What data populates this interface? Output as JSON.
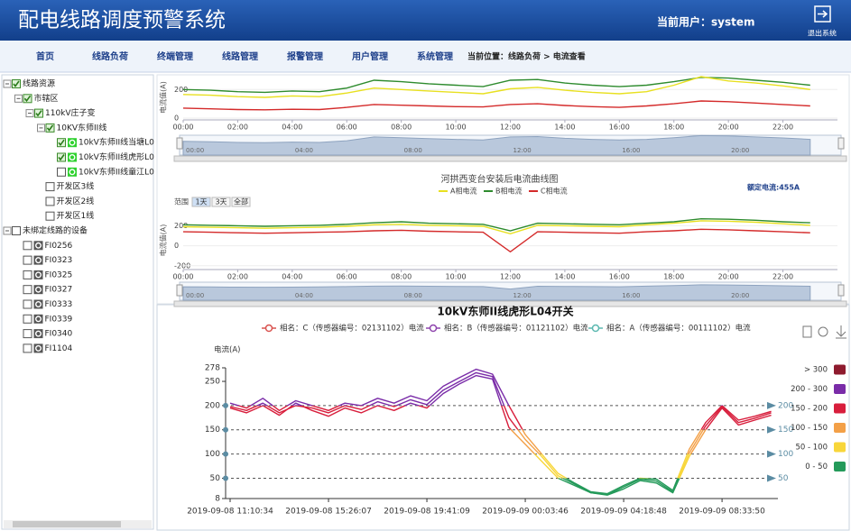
{
  "header": {
    "title": "配电线路调度预警系统",
    "user": "当前用户：system",
    "logout": "退出系统"
  },
  "nav": {
    "items": [
      "首页",
      "线路负荷",
      "终端管理",
      "线路管理",
      "报警管理",
      "用户管理",
      "系统管理"
    ],
    "location": "当前位置：线路负荷 > 电流查看"
  },
  "tree": [
    {
      "label": "线路资源",
      "level": 0,
      "checked": true
    },
    {
      "label": "市辖区",
      "level": 1,
      "checked": true
    },
    {
      "label": "110kV庄子变",
      "level": 2,
      "checked": true
    },
    {
      "label": "10KV东师II线",
      "level": 3,
      "checked": true
    },
    {
      "label": "10kV东师II线当塘L0",
      "level": 4,
      "checked": true,
      "icon": "switch"
    },
    {
      "label": "10kV东师II线虎形L0",
      "level": 4,
      "checked": true,
      "icon": "switch"
    },
    {
      "label": "10kV东师II线童江L0",
      "level": 4,
      "checked": false,
      "icon": "switch"
    },
    {
      "label": "开发区3线",
      "level": 3,
      "checked": false
    },
    {
      "label": "开发区2线",
      "level": 3,
      "checked": false
    },
    {
      "label": "开发区1线",
      "level": 3,
      "checked": false
    },
    {
      "label": "未绑定线路的设备",
      "level": 0,
      "checked": false
    },
    {
      "label": "FI0256",
      "level": 1,
      "checked": false,
      "icon": "sensor"
    },
    {
      "label": "FI0323",
      "level": 1,
      "checked": false,
      "icon": "sensor"
    },
    {
      "label": "FI0325",
      "level": 1,
      "checked": false,
      "icon": "sensor"
    },
    {
      "label": "FI0327",
      "level": 1,
      "checked": false,
      "icon": "sensor"
    },
    {
      "label": "FI0333",
      "level": 1,
      "checked": false,
      "icon": "sensor"
    },
    {
      "label": "FI0339",
      "level": 1,
      "checked": false,
      "icon": "sensor"
    },
    {
      "label": "FI0340",
      "level": 1,
      "checked": false,
      "icon": "sensor"
    },
    {
      "label": "FI1104",
      "level": 1,
      "checked": false,
      "icon": "sensor"
    }
  ],
  "chart_data": [
    {
      "type": "line",
      "y_label": "电流值(A)",
      "x": [
        0,
        1,
        2,
        3,
        4,
        5,
        6,
        7,
        8,
        9,
        10,
        11,
        12,
        13,
        14,
        15,
        16,
        17,
        18,
        19,
        20,
        21,
        22,
        23
      ],
      "xlim": [
        0,
        24
      ],
      "xticks": [
        {
          "value": 0,
          "label": "00:00"
        },
        {
          "value": 2,
          "label": "02:00"
        },
        {
          "value": 4,
          "label": "04:00"
        },
        {
          "value": 6,
          "label": "06:00"
        },
        {
          "value": 8,
          "label": "08:00"
        },
        {
          "value": 10,
          "label": "10:00"
        },
        {
          "value": 12,
          "label": "12:00"
        },
        {
          "value": 14,
          "label": "14:00"
        },
        {
          "value": 16,
          "label": "16:00"
        },
        {
          "value": 18,
          "label": "18:00"
        },
        {
          "value": 20,
          "label": "20:00"
        },
        {
          "value": 22,
          "label": "22:00"
        }
      ],
      "ylim": [
        0,
        290
      ],
      "yticks": [
        0,
        200
      ],
      "series": [
        {
          "color": "#2e8b2e",
          "values": [
            200,
            195,
            185,
            180,
            190,
            185,
            210,
            265,
            255,
            240,
            230,
            220,
            265,
            270,
            245,
            230,
            220,
            230,
            255,
            285,
            280,
            265,
            250,
            230
          ]
        },
        {
          "color": "#e8e020",
          "values": [
            165,
            160,
            150,
            145,
            155,
            150,
            175,
            210,
            200,
            190,
            180,
            170,
            205,
            215,
            195,
            180,
            170,
            185,
            230,
            290,
            260,
            245,
            225,
            200
          ]
        },
        {
          "color": "#d42a2a",
          "values": [
            70,
            65,
            60,
            58,
            62,
            60,
            75,
            95,
            90,
            85,
            80,
            78,
            95,
            100,
            88,
            80,
            75,
            85,
            100,
            120,
            115,
            105,
            95,
            85
          ]
        }
      ]
    },
    {
      "type": "line",
      "title": "河拱西变台安装后电流曲线图",
      "y_label": "电流值(A)",
      "rated_current": "额定电流:455A",
      "range_selector": {
        "label": "范围",
        "buttons": [
          "1天",
          "3天",
          "全部"
        ],
        "selected": 0
      },
      "x": [
        0,
        1,
        2,
        3,
        4,
        5,
        6,
        7,
        8,
        9,
        10,
        11,
        12,
        13,
        14,
        15,
        16,
        17,
        18,
        19,
        20,
        21,
        22,
        23
      ],
      "xlim": [
        0,
        24
      ],
      "xticks": [
        {
          "value": 0,
          "label": "00:00"
        },
        {
          "value": 2,
          "label": "02:00"
        },
        {
          "value": 4,
          "label": "04:00"
        },
        {
          "value": 6,
          "label": "06:00"
        },
        {
          "value": 8,
          "label": "08:00"
        },
        {
          "value": 10,
          "label": "10:00"
        },
        {
          "value": 12,
          "label": "12:00"
        },
        {
          "value": 14,
          "label": "14:00"
        },
        {
          "value": 16,
          "label": "16:00"
        },
        {
          "value": 18,
          "label": "18:00"
        },
        {
          "value": 20,
          "label": "20:00"
        },
        {
          "value": 22,
          "label": "22:00"
        }
      ],
      "ylim": [
        -220,
        330
      ],
      "yticks": [
        -200,
        0,
        200
      ],
      "series": [
        {
          "name": "A相电流",
          "color": "#e8e020",
          "values": [
            190,
            185,
            180,
            175,
            180,
            185,
            195,
            210,
            215,
            205,
            200,
            195,
            120,
            205,
            200,
            195,
            190,
            210,
            225,
            250,
            245,
            235,
            220,
            205
          ]
        },
        {
          "name": "B相电流",
          "color": "#2e8b2e",
          "values": [
            210,
            205,
            200,
            195,
            200,
            205,
            215,
            230,
            240,
            225,
            220,
            215,
            150,
            225,
            220,
            215,
            210,
            225,
            240,
            270,
            265,
            255,
            240,
            230
          ]
        },
        {
          "name": "C相电流",
          "color": "#d42a2a",
          "values": [
            140,
            135,
            130,
            125,
            130,
            135,
            140,
            150,
            155,
            145,
            140,
            135,
            -60,
            140,
            135,
            130,
            125,
            140,
            150,
            165,
            160,
            150,
            140,
            130
          ]
        }
      ]
    },
    {
      "type": "line",
      "title": "10kV东师II线虎形L04开关",
      "y_label": "电流(A)",
      "categories": [
        "2019-09-08 11:10:34",
        null,
        null,
        null,
        null,
        null,
        "2019-09-08 15:26:07",
        null,
        null,
        null,
        null,
        null,
        "2019-09-08 19:41:09",
        null,
        null,
        null,
        null,
        null,
        "2019-09-09 00:03:46",
        null,
        null,
        null,
        null,
        null,
        "2019-09-09 04:18:48",
        null,
        null,
        null,
        null,
        null,
        "2019-09-09 08:33:50",
        null,
        null,
        null
      ],
      "ylim": [
        8,
        278
      ],
      "yticks": [
        8,
        50,
        100,
        150,
        200,
        250,
        278
      ],
      "mark_lines": [
        200,
        150,
        100,
        50
      ],
      "visual_map": [
        {
          "label": "> 300",
          "min": 300,
          "color": "#8e1b2e"
        },
        {
          "label": "200 - 300",
          "min": 200,
          "max": 300,
          "color": "#7a2ca8"
        },
        {
          "label": "150 - 200",
          "min": 150,
          "max": 200,
          "color": "#d81e3c"
        },
        {
          "label": "100 - 150",
          "min": 100,
          "max": 150,
          "color": "#f3a047"
        },
        {
          "label": "50 - 100",
          "min": 50,
          "max": 100,
          "color": "#f8d63a"
        },
        {
          "label": "0 - 50",
          "min": 0,
          "max": 50,
          "color": "#249a5a"
        }
      ],
      "series": [
        {
          "name": "相名：C（传感器编号：02131102）电流",
          "color": "#d9534f",
          "values": [
            195,
            185,
            200,
            180,
            205,
            190,
            178,
            195,
            185,
            200,
            190,
            205,
            195,
            225,
            245,
            262,
            255,
            155,
            120,
            85,
            50,
            35,
            20,
            15,
            28,
            45,
            40,
            20,
            95,
            150,
            195,
            160,
            170,
            180
          ]
        },
        {
          "name": "相名：B（传感器编号：01121102）电流",
          "color": "#8e44ad",
          "values": [
            205,
            195,
            215,
            190,
            210,
            200,
            190,
            205,
            200,
            215,
            205,
            220,
            210,
            240,
            258,
            275,
            265,
            200,
            140,
            100,
            60,
            40,
            22,
            18,
            35,
            50,
            48,
            25,
            110,
            165,
            200,
            170,
            178,
            188
          ]
        },
        {
          "name": "相名：A（传感器编号：00111102）电流",
          "color": "#5bb8b0",
          "values": [
            198,
            190,
            205,
            185,
            200,
            195,
            185,
            200,
            192,
            208,
            198,
            212,
            202,
            232,
            250,
            268,
            260,
            175,
            130,
            95,
            55,
            38,
            20,
            16,
            32,
            48,
            44,
            22,
            102,
            158,
            198,
            165,
            174,
            185
          ]
        }
      ]
    }
  ]
}
